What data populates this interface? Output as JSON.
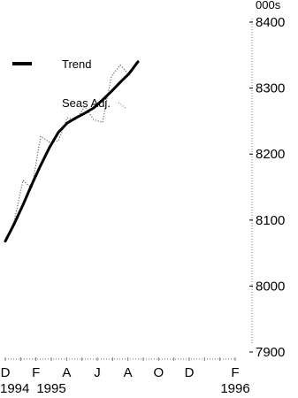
{
  "chart_data": {
    "type": "line",
    "title": "",
    "units_label": "000s",
    "ylim": [
      7900,
      8400
    ],
    "y_ticks": [
      7900,
      8000,
      8100,
      8200,
      8300,
      8400
    ],
    "y_tick_labels": [
      "7900",
      "8000",
      "8100",
      "8200",
      "8300",
      "8400"
    ],
    "x": [
      0,
      1,
      2,
      3,
      4,
      5,
      6,
      7,
      8,
      9,
      10,
      11,
      12,
      13,
      14,
      15,
      16,
      17,
      18,
      19,
      20,
      21,
      22,
      23,
      24,
      25,
      26
    ],
    "x_ticks": [
      0,
      2,
      4,
      6,
      8,
      10,
      12,
      14,
      16,
      18,
      20,
      22,
      24,
      26
    ],
    "x_tick_month_labels": [
      "D",
      "",
      "F",
      "",
      "A",
      "",
      "J",
      "",
      "A",
      "",
      "O",
      "",
      "D",
      "F"
    ],
    "x_year_labels": [
      {
        "at": 0,
        "label": "1994"
      },
      {
        "at": 3,
        "label": "1995"
      },
      {
        "at": 15,
        "label": "1996"
      }
    ],
    "legend": [
      {
        "name": "Trend",
        "style": "solid-thick"
      },
      {
        "name": "Seas Adj.",
        "style": "dotted-thin"
      }
    ],
    "series": [
      {
        "name": "Trend",
        "style": "solid-thick",
        "color": "#000000",
        "x": [
          0,
          1,
          2,
          3,
          4,
          5,
          6,
          7,
          8,
          9,
          10,
          11,
          12,
          13,
          14,
          15
        ],
        "values": [
          8068,
          8094,
          8123,
          8154,
          8183,
          8210,
          8233,
          8247,
          8255,
          8262,
          8270,
          8282,
          8295,
          8309,
          8322,
          8340
        ]
      },
      {
        "name": "Seas Adj.",
        "style": "dotted-thin",
        "color": "#666666",
        "x": [
          0,
          1,
          2,
          3,
          4,
          5,
          6,
          7,
          8,
          9,
          10,
          11,
          12,
          13,
          14,
          15
        ],
        "values": [
          8068,
          8098,
          8160,
          8148,
          8227,
          8218,
          8220,
          8255,
          8252,
          8272,
          8252,
          8248,
          8318,
          8335,
          8320,
          8342
        ]
      }
    ]
  },
  "legend_labels": {
    "trend": "Trend",
    "seas_adj": "Seas Adj."
  }
}
